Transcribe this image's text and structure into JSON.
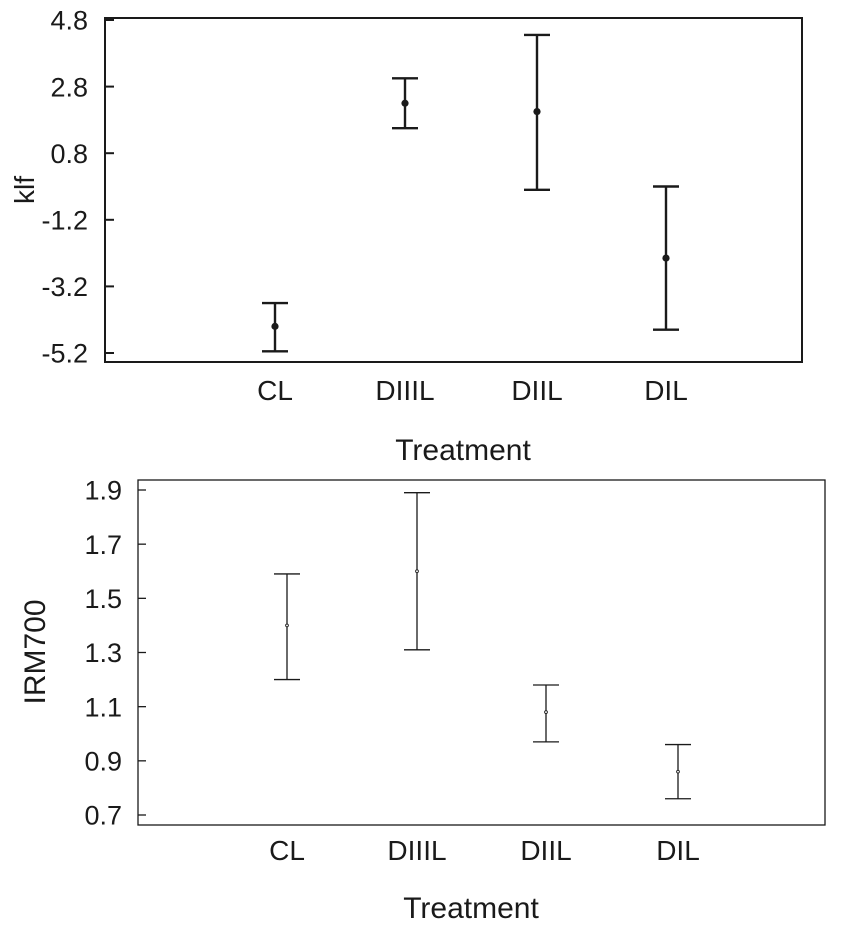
{
  "chart_data": [
    {
      "type": "errorbar",
      "xlabel": "Treatment",
      "ylabel": "klf",
      "categories": [
        "CL",
        "DIIIL",
        "DIIL",
        "DIL"
      ],
      "y_ticks": [
        4.8,
        2.8,
        0.8,
        -1.2,
        -3.2,
        -5.2
      ],
      "y_tick_labels": [
        "4.8",
        "2.8",
        "0.8",
        "-1.2",
        "-3.2",
        "-5.2"
      ],
      "ylim": [
        -5.2,
        4.8
      ],
      "series": [
        {
          "means": [
            -4.4,
            2.3,
            2.05,
            -2.35
          ],
          "lower": [
            -5.15,
            1.55,
            -0.3,
            -4.5
          ],
          "upper": [
            -3.7,
            3.05,
            4.35,
            -0.2
          ]
        }
      ],
      "grid": false,
      "colors": {
        "line": "#1a1a1a",
        "frame": "#1a1a1a"
      }
    },
    {
      "type": "errorbar",
      "xlabel": "Treatment",
      "ylabel": "IRM700",
      "categories": [
        "CL",
        "DIIIL",
        "DIIL",
        "DIL"
      ],
      "y_ticks": [
        1.9,
        1.7,
        1.5,
        1.3,
        1.1,
        0.9,
        0.7
      ],
      "y_tick_labels": [
        "1.9",
        "1.7",
        "1.5",
        "1.3",
        "1.1",
        "0.9",
        "0.7"
      ],
      "ylim": [
        0.68,
        1.9
      ],
      "series": [
        {
          "means": [
            1.4,
            1.6,
            1.08,
            0.86
          ],
          "lower": [
            1.2,
            1.31,
            0.97,
            0.76
          ],
          "upper": [
            1.59,
            1.89,
            1.18,
            0.96
          ]
        }
      ],
      "grid": false,
      "colors": {
        "line": "#1a1a1a",
        "frame": "#1a1a1a"
      }
    }
  ]
}
